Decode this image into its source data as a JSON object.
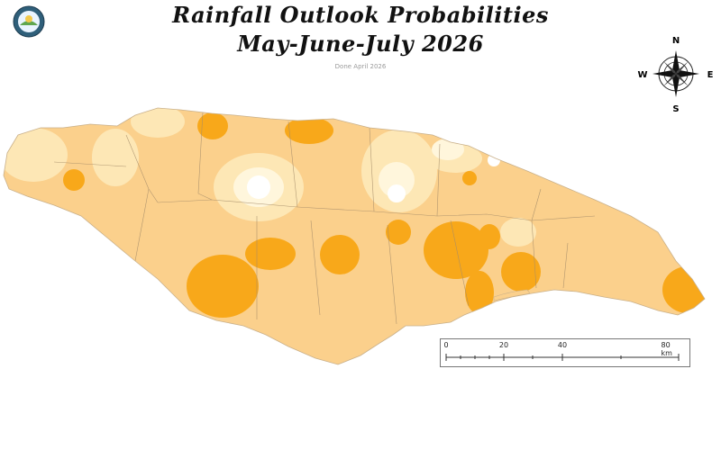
{
  "title_line1": "Rainfall Outlook Probabilities",
  "title_line2": "May-June-July 2026",
  "subtitle": "Done April 2026",
  "compass": {
    "n": "N",
    "s": "S",
    "e": "E",
    "w": "W"
  },
  "scalebar": {
    "ticks": [
      "0",
      "20",
      "40",
      "80 km"
    ]
  },
  "colors": {
    "light": "#fde7b5",
    "medium": "#fbd08c",
    "dark": "#f8a81a",
    "very_light": "#fff5d7",
    "border": "#a58c6a"
  },
  "icons": {
    "logo": "met-service-logo",
    "compass": "north-arrow-compass-icon"
  }
}
